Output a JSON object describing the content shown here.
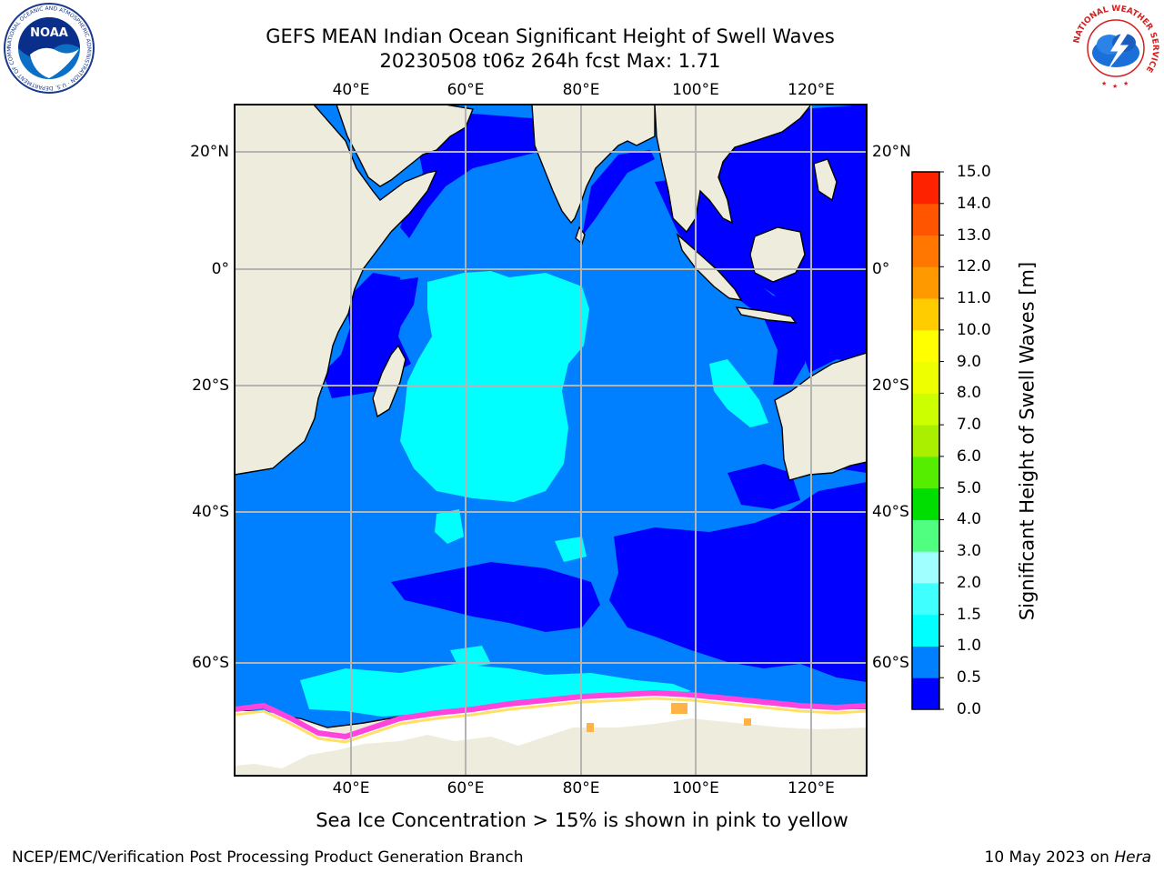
{
  "header": {
    "title_line1": "GEFS MEAN Indian Ocean Significant Height of Swell Waves",
    "title_line2": "20230508 t06z 264h fcst   Max: 1.71"
  },
  "map": {
    "lon_ticks_top": [
      "40°E",
      "60°E",
      "80°E",
      "100°E",
      "120°E"
    ],
    "lon_ticks_bottom": [
      "40°E",
      "60°E",
      "80°E",
      "100°E",
      "120°E"
    ],
    "lat_ticks_left": [
      "20°N",
      "0°",
      "20°S",
      "40°S",
      "60°S"
    ],
    "lat_ticks_right": [
      "20°N",
      "0°",
      "20°S",
      "40°S",
      "60°S"
    ],
    "colors": {
      "land": "#eeeddd",
      "sea_ice": "#ffffff",
      "grid": "#b4b4b4",
      "ice_edge_pink": "#ff44dd",
      "ice_edge_yellow": "#ffe066"
    }
  },
  "colorbar": {
    "label": "Significant Height of Swell Waves [m]",
    "ticks": [
      "0.0",
      "0.5",
      "1.0",
      "1.5",
      "2.0",
      "3.0",
      "4.0",
      "5.0",
      "6.0",
      "7.0",
      "8.0",
      "9.0",
      "10.0",
      "11.0",
      "12.0",
      "13.0",
      "14.0",
      "15.0"
    ],
    "colors": [
      "#0000ff",
      "#0080ff",
      "#00ffff",
      "#40ffff",
      "#a0ffff",
      "#50ff80",
      "#00dd00",
      "#55ee00",
      "#aaee00",
      "#ccff00",
      "#eeff00",
      "#ffff00",
      "#ffcc00",
      "#ff9900",
      "#ff7700",
      "#ff5500",
      "#ff2200",
      "#ff0000"
    ]
  },
  "chart_data": {
    "type": "heatmap",
    "title": "GEFS MEAN Indian Ocean Significant Height of Swell Waves",
    "subtitle": "20230508 t06z 264h fcst   Max: 1.71",
    "max_value": 1.71,
    "units": "m",
    "lon_range": [
      "20°E",
      "130°E"
    ],
    "lat_range": [
      "75°S",
      "27°N"
    ],
    "regions": [
      {
        "area": "central Indian Ocean 5°S-35°S, 50°E-80°E",
        "range": "1.0-1.5"
      },
      {
        "area": "most of Indian Ocean",
        "range": "0.5-1.0"
      },
      {
        "area": "Arabian Sea, Bay of Bengal, Indonesian seas, Mozambique Channel",
        "range": "0.0-0.5"
      },
      {
        "area": "southern ocean band 45°S-60°S, 60°E-130°E",
        "range": "0.0-0.5"
      },
      {
        "area": "north of Antarctic ice edge 62°S-68°S",
        "range": "1.0-1.5"
      }
    ]
  },
  "note": "Sea Ice Concentration > 15% is shown in pink to yellow",
  "footer": {
    "left": "NCEP/EMC/Verification Post Processing Product Generation Branch",
    "date": "10 May 2023 on ",
    "machine": "Hera"
  },
  "logos": {
    "noaa_text": "NOAA",
    "noaa_ring": "NATIONAL OCEANIC AND ATMOSPHERIC ADMINISTRATION · U.S. DEPARTMENT OF COMMERCE",
    "nws_ring": "NATIONAL WEATHER SERVICE"
  }
}
